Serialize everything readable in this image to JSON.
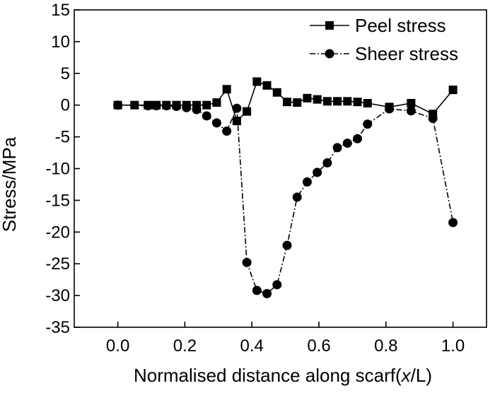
{
  "chart_data": {
    "type": "line",
    "title": "",
    "xlabel_main": "Normalised distance along scarf",
    "xlabel_paren_open": "(",
    "xlabel_var": "x",
    "xlabel_unit": "/L)",
    "ylabel": "Stress/MPa",
    "xlim": [
      -0.13,
      1.1
    ],
    "ylim": [
      -35,
      15
    ],
    "xticks": [
      0.0,
      0.2,
      0.4,
      0.6,
      0.8,
      1.0
    ],
    "xtick_labels": [
      "0.0",
      "0.2",
      "0.4",
      "0.6",
      "0.8",
      "1.0"
    ],
    "yticks": [
      15,
      10,
      5,
      0,
      -5,
      -10,
      -15,
      -20,
      -25,
      -30,
      -35
    ],
    "ytick_labels": [
      "15",
      "10",
      "5",
      "0",
      "-5",
      "-10",
      "-15",
      "-20",
      "-25",
      "-30",
      "-35"
    ],
    "legend_position": "top-right",
    "series": [
      {
        "name": "Peel stress",
        "marker": "square",
        "line_style": "solid",
        "color": "#000000",
        "x": [
          0.0,
          0.05,
          0.09,
          0.115,
          0.145,
          0.175,
          0.205,
          0.235,
          0.265,
          0.295,
          0.325,
          0.355,
          0.385,
          0.415,
          0.445,
          0.475,
          0.505,
          0.535,
          0.565,
          0.595,
          0.625,
          0.655,
          0.685,
          0.715,
          0.745,
          0.81,
          0.875,
          0.94,
          1.0
        ],
        "y": [
          0.0,
          0.0,
          0.0,
          0.0,
          0.0,
          0.0,
          0.0,
          0.0,
          0.0,
          0.4,
          2.5,
          -2.5,
          -1.0,
          3.7,
          3.1,
          2.0,
          0.5,
          0.4,
          1.1,
          0.9,
          0.6,
          0.6,
          0.6,
          0.5,
          0.3,
          -0.3,
          0.3,
          -1.4,
          2.4
        ]
      },
      {
        "name": "Sheer stress",
        "marker": "circle",
        "line_style": "dash-dot",
        "color": "#000000",
        "x": [
          0.0,
          0.09,
          0.115,
          0.145,
          0.175,
          0.205,
          0.235,
          0.265,
          0.295,
          0.325,
          0.355,
          0.385,
          0.415,
          0.445,
          0.475,
          0.505,
          0.535,
          0.565,
          0.595,
          0.625,
          0.655,
          0.685,
          0.715,
          0.745,
          0.81,
          0.875,
          0.94,
          1.0
        ],
        "y": [
          0.0,
          -0.1,
          -0.1,
          -0.1,
          -0.2,
          -0.4,
          -0.7,
          -1.7,
          -2.8,
          -4.1,
          -0.5,
          -24.8,
          -29.2,
          -29.7,
          -28.3,
          -22.1,
          -14.5,
          -12.1,
          -10.6,
          -9.1,
          -6.7,
          -6.0,
          -5.3,
          -3.0,
          -0.6,
          -0.9,
          -2.1,
          -18.5
        ]
      }
    ]
  }
}
